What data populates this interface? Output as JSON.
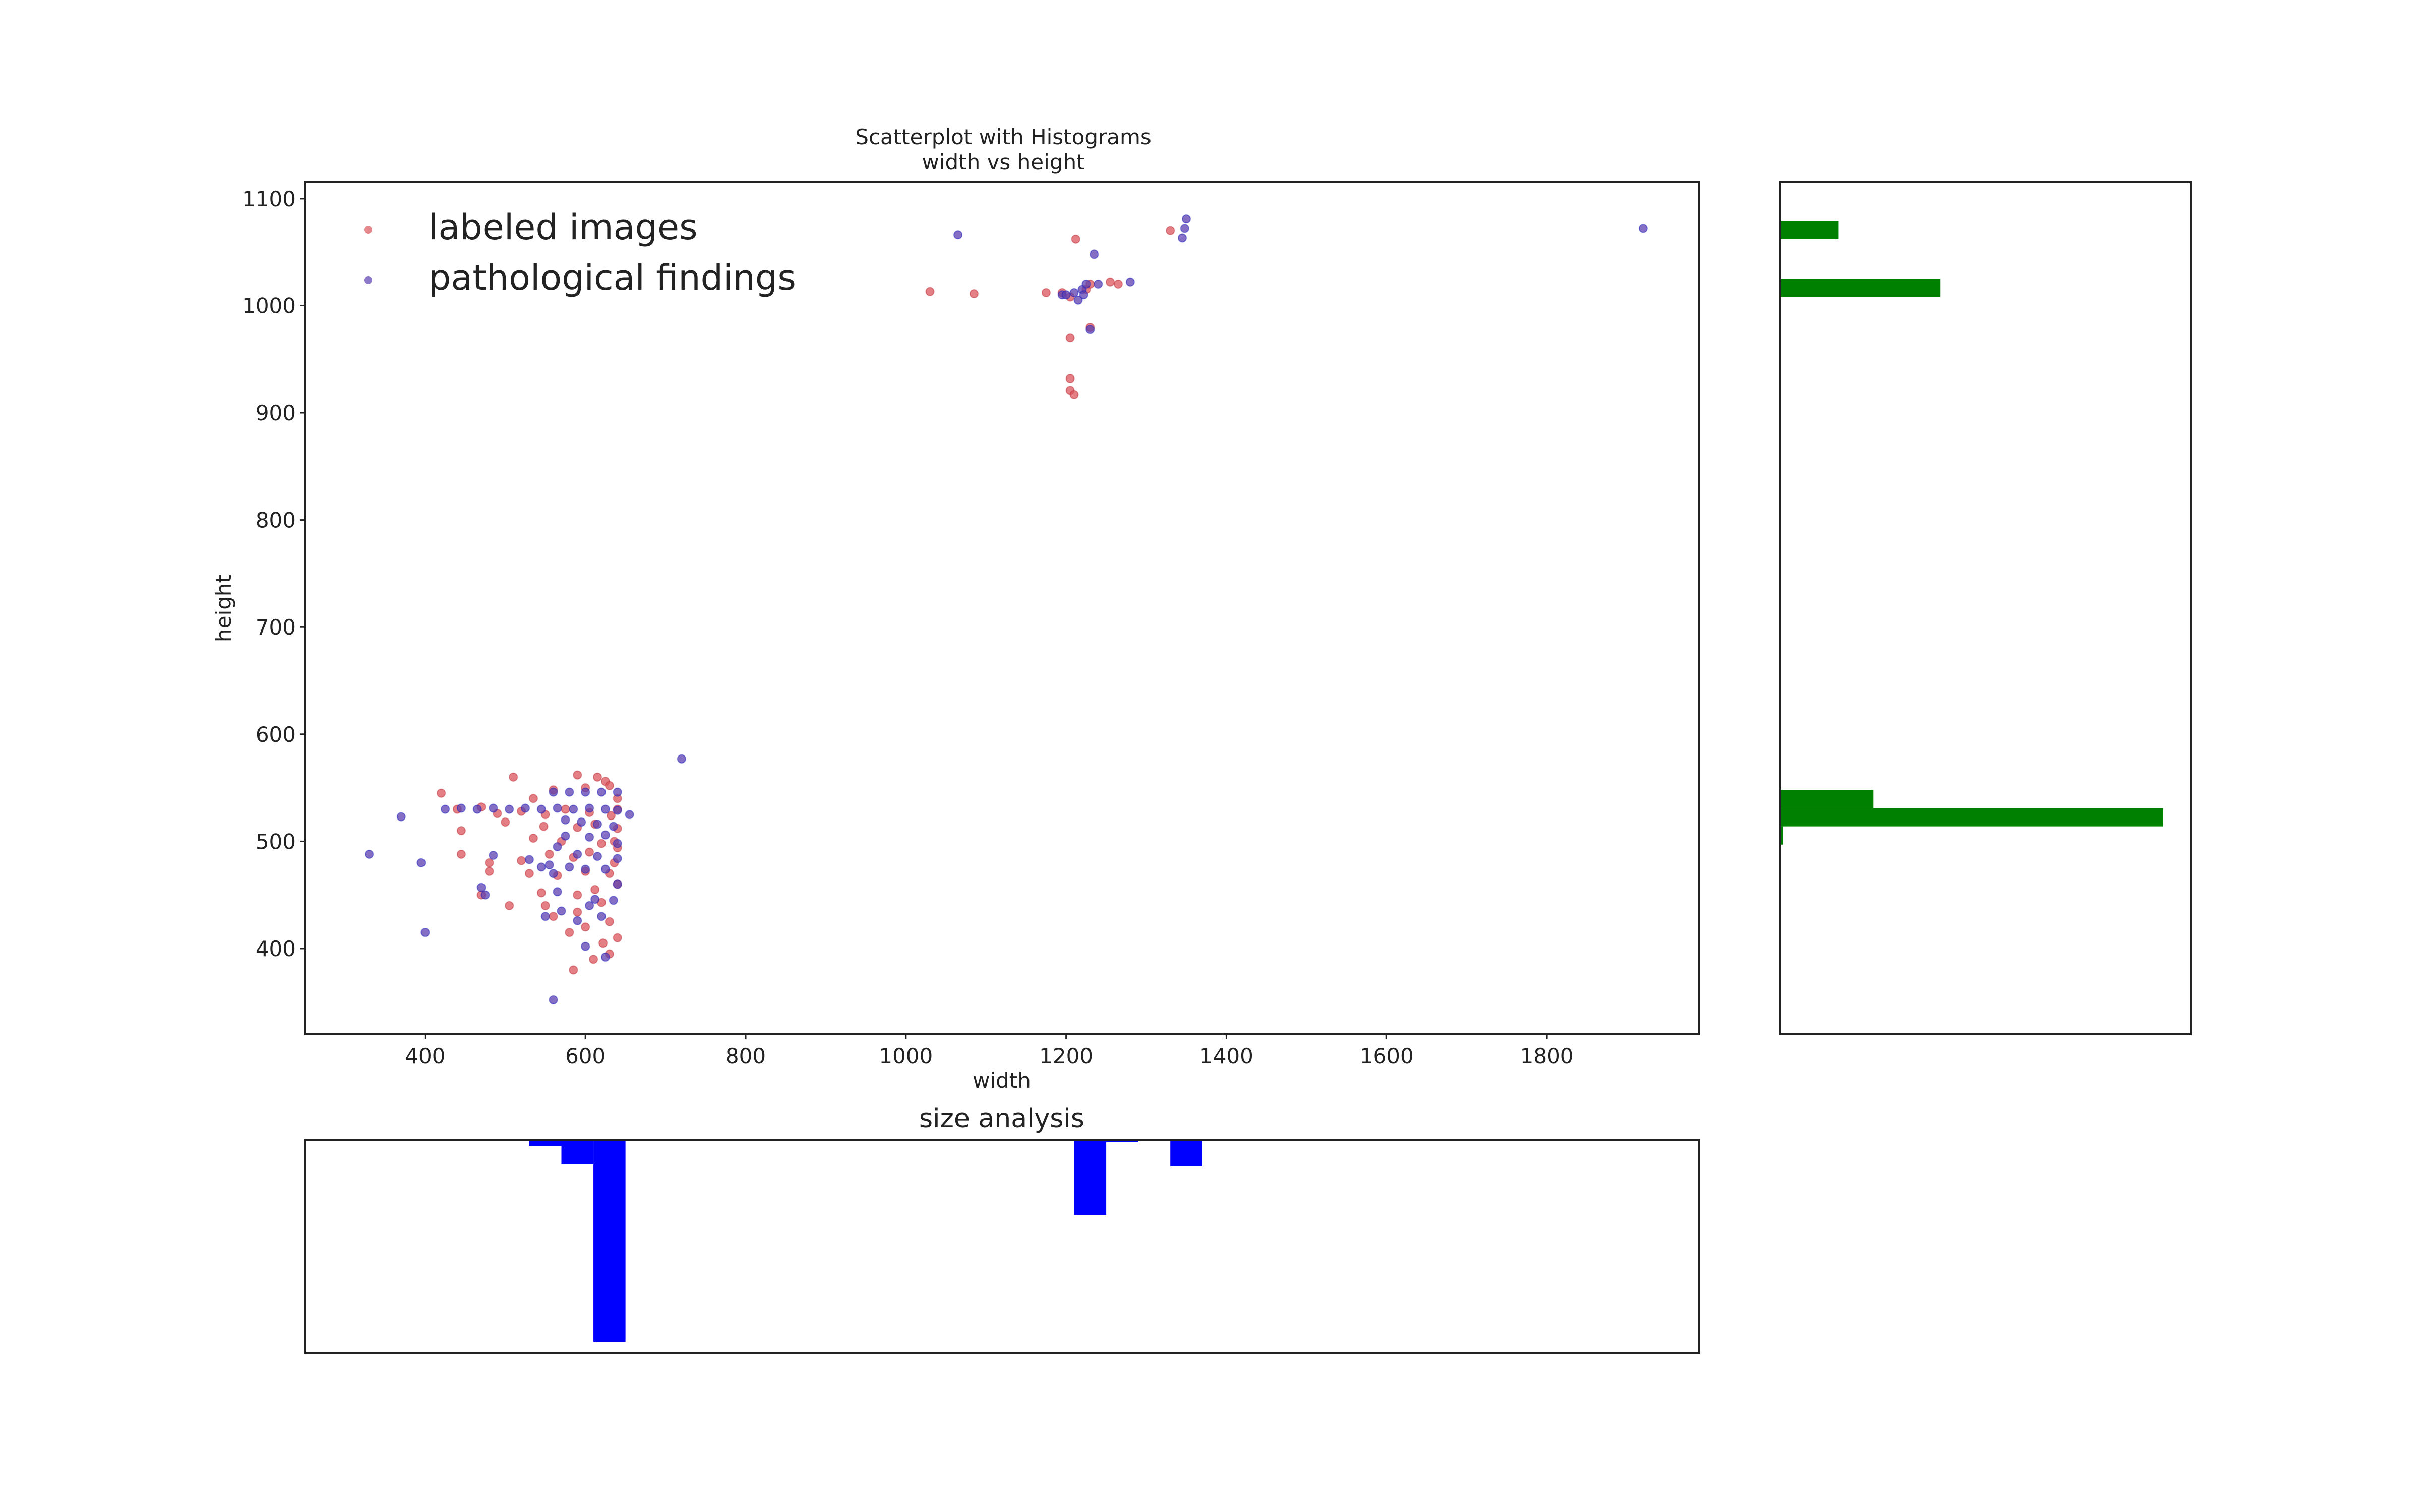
{
  "chart_data": [
    {
      "type": "scatter",
      "title": "Scatterplot with Histograms",
      "subtitle": "width vs height",
      "xlabel": "width",
      "ylabel": "height",
      "xlim": [
        250,
        1990
      ],
      "ylim": [
        320,
        1115
      ],
      "x_ticks": [
        400,
        600,
        800,
        1000,
        1200,
        1400,
        1600,
        1800
      ],
      "y_ticks": [
        400,
        500,
        600,
        700,
        800,
        900,
        1000,
        1100
      ],
      "grid": false,
      "legend_position": "top-left",
      "series": [
        {
          "name": "labeled images",
          "color": "#d9545c",
          "points": [
            [
              510,
              560
            ],
            [
              590,
              562
            ],
            [
              615,
              560
            ],
            [
              625,
              556
            ],
            [
              600,
              550
            ],
            [
              630,
              552
            ],
            [
              560,
              548
            ],
            [
              535,
              540
            ],
            [
              420,
              545
            ],
            [
              440,
              530
            ],
            [
              470,
              532
            ],
            [
              490,
              526
            ],
            [
              520,
              528
            ],
            [
              550,
              525
            ],
            [
              575,
              530
            ],
            [
              605,
              527
            ],
            [
              632,
              524
            ],
            [
              640,
              512
            ],
            [
              612,
              516
            ],
            [
              590,
              513
            ],
            [
              548,
              514
            ],
            [
              500,
              518
            ],
            [
              445,
              510
            ],
            [
              535,
              503
            ],
            [
              570,
              500
            ],
            [
              620,
              498
            ],
            [
              640,
              494
            ],
            [
              605,
              490
            ],
            [
              585,
              485
            ],
            [
              555,
              488
            ],
            [
              520,
              482
            ],
            [
              480,
              480
            ],
            [
              445,
              488
            ],
            [
              530,
              470
            ],
            [
              565,
              468
            ],
            [
              600,
              472
            ],
            [
              630,
              470
            ],
            [
              640,
              460
            ],
            [
              612,
              455
            ],
            [
              590,
              450
            ],
            [
              545,
              452
            ],
            [
              505,
              440
            ],
            [
              480,
              472
            ],
            [
              470,
              450
            ],
            [
              550,
              440
            ],
            [
              590,
              434
            ],
            [
              620,
              443
            ],
            [
              630,
              425
            ],
            [
              600,
              420
            ],
            [
              580,
              415
            ],
            [
              560,
              430
            ],
            [
              640,
              410
            ],
            [
              622,
              405
            ],
            [
              610,
              390
            ],
            [
              585,
              380
            ],
            [
              630,
              395
            ],
            [
              640,
              530
            ],
            [
              640,
              540
            ],
            [
              636,
              500
            ],
            [
              636,
              480
            ],
            [
              1030,
              1013
            ],
            [
              1085,
              1011
            ],
            [
              1175,
              1012
            ],
            [
              1195,
              1012
            ],
            [
              1205,
              1008
            ],
            [
              1225,
              1015
            ],
            [
              1230,
              1020
            ],
            [
              1255,
              1022
            ],
            [
              1265,
              1020
            ],
            [
              1212,
              1062
            ],
            [
              1205,
              970
            ],
            [
              1205,
              932
            ],
            [
              1205,
              921
            ],
            [
              1210,
              917
            ],
            [
              1230,
              980
            ],
            [
              1330,
              1070
            ]
          ]
        },
        {
          "name": "pathological findings",
          "color": "#5b3fb0",
          "points": [
            [
              330,
              488
            ],
            [
              370,
              523
            ],
            [
              395,
              480
            ],
            [
              400,
              415
            ],
            [
              425,
              530
            ],
            [
              445,
              531
            ],
            [
              465,
              530
            ],
            [
              485,
              531
            ],
            [
              505,
              530
            ],
            [
              525,
              531
            ],
            [
              545,
              530
            ],
            [
              565,
              531
            ],
            [
              585,
              530
            ],
            [
              605,
              531
            ],
            [
              625,
              530
            ],
            [
              640,
              529
            ],
            [
              655,
              525
            ],
            [
              560,
              546
            ],
            [
              580,
              546
            ],
            [
              600,
              546
            ],
            [
              620,
              546
            ],
            [
              640,
              546
            ],
            [
              575,
              520
            ],
            [
              595,
              518
            ],
            [
              615,
              516
            ],
            [
              635,
              514
            ],
            [
              575,
              505
            ],
            [
              605,
              504
            ],
            [
              625,
              506
            ],
            [
              640,
              498
            ],
            [
              565,
              495
            ],
            [
              590,
              488
            ],
            [
              615,
              486
            ],
            [
              640,
              484
            ],
            [
              555,
              478
            ],
            [
              580,
              476
            ],
            [
              600,
              474
            ],
            [
              625,
              474
            ],
            [
              470,
              457
            ],
            [
              485,
              487
            ],
            [
              475,
              450
            ],
            [
              530,
              483
            ],
            [
              545,
              476
            ],
            [
              560,
              470
            ],
            [
              565,
              453
            ],
            [
              570,
              435
            ],
            [
              590,
              426
            ],
            [
              605,
              440
            ],
            [
              620,
              430
            ],
            [
              600,
              402
            ],
            [
              625,
              392
            ],
            [
              560,
              352
            ],
            [
              640,
              460
            ],
            [
              612,
              446
            ],
            [
              635,
              445
            ],
            [
              550,
              430
            ],
            [
              720,
              577
            ],
            [
              1065,
              1066
            ],
            [
              1195,
              1010
            ],
            [
              1210,
              1012
            ],
            [
              1215,
              1005
            ],
            [
              1220,
              1015
            ],
            [
              1225,
              1020
            ],
            [
              1235,
              1048
            ],
            [
              1230,
              978
            ],
            [
              1240,
              1020
            ],
            [
              1280,
              1022
            ],
            [
              1345,
              1063
            ],
            [
              1348,
              1072
            ],
            [
              1350,
              1081
            ],
            [
              1920,
              1072
            ],
            [
              1200,
              1010
            ],
            [
              1222,
              1010
            ]
          ]
        }
      ]
    },
    {
      "type": "bar",
      "orientation": "horizontal",
      "title": "",
      "color": "#008000",
      "ylim": [
        320,
        1115
      ],
      "bins": [
        {
          "range": [
            1062,
            1079
          ],
          "count": 15
        },
        {
          "range": [
            1008,
            1025
          ],
          "count": 41
        },
        {
          "range": [
            531,
            548
          ],
          "count": 24
        },
        {
          "range": [
            514,
            531
          ],
          "count": 98
        },
        {
          "range": [
            497,
            514
          ],
          "count": 0.8
        }
      ]
    },
    {
      "type": "bar",
      "orientation": "vertical-inverted",
      "title": "size analysis",
      "color": "#0000ff",
      "xlim": [
        250,
        1990
      ],
      "bins": [
        {
          "range": [
            530,
            570
          ],
          "count": 3
        },
        {
          "range": [
            570,
            610
          ],
          "count": 12
        },
        {
          "range": [
            610,
            650
          ],
          "count": 100
        },
        {
          "range": [
            1210,
            1250
          ],
          "count": 37
        },
        {
          "range": [
            1250,
            1290
          ],
          "count": 0.6
        },
        {
          "range": [
            1330,
            1370
          ],
          "count": 13
        }
      ]
    }
  ]
}
